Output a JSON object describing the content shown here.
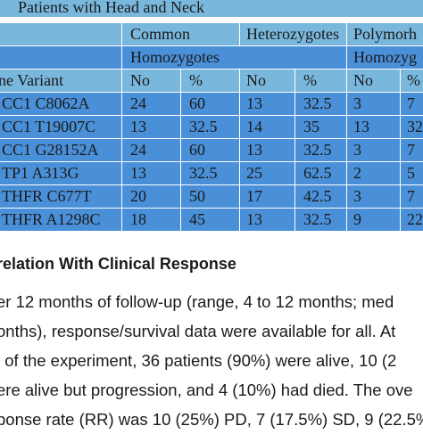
{
  "table": {
    "title": "Patients with Head and Neck",
    "header1": [
      "Common",
      "Heterozygotes",
      "Polymorh"
    ],
    "header2": [
      "Homozygotes",
      "Homozyg"
    ],
    "header3": [
      "ne Variant",
      "No",
      "%",
      "No",
      "%",
      "No",
      "%"
    ],
    "rows": [
      [
        "CC1 C8062A",
        "24",
        "60",
        "13",
        "32.5",
        "3",
        "7"
      ],
      [
        "CC1 T19007C",
        "13",
        "32.5",
        "14",
        "35",
        "13",
        "32"
      ],
      [
        "CC1 G28152A",
        "24",
        "60",
        "13",
        "32.5",
        "3",
        "7"
      ],
      [
        "TP1 A313G",
        "13",
        "32.5",
        "25",
        "62.5",
        "2",
        "5"
      ],
      [
        "THFR C677T",
        "20",
        "50",
        "17",
        "42.5",
        "3",
        "7"
      ],
      [
        "THFR A1298C",
        "18",
        "45",
        "13",
        "32.5",
        "9",
        "22"
      ]
    ]
  },
  "section": {
    "heading": "relation With Clinical Response",
    "lines": [
      "er 12 months of follow-up (range, 4 to 12 months; med",
      "onths), response/survival data were available for all. At",
      "l of the experiment, 36 patients (90%) were alive, 10 (2",
      "ere alive but progression, and 4 (10%) had died. The ove",
      "ponse rate (RR) was 10 (25%) PD, 7 (17.5%) SD, 9 (22.5%"
    ]
  },
  "colors": {
    "header_light": "#7ab7dd",
    "row_blue": "#4a90d9"
  }
}
